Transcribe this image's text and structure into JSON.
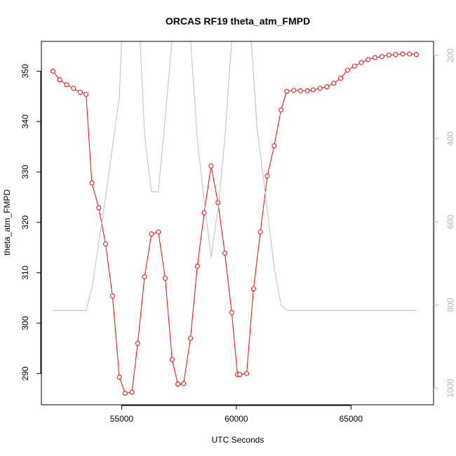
{
  "chart_data": {
    "type": "line",
    "title": "ORCAS RF19 theta_atm_FMPD",
    "xlabel": "UTC Seconds",
    "ylabel": "theta_atm_FMPD",
    "xlim": [
      51500,
      68600
    ],
    "ylim": [
      283.8,
      355.9
    ],
    "y2lim": [
      1040,
      166
    ],
    "x_ticks": [
      55000,
      60000,
      65000
    ],
    "y_ticks": [
      290,
      300,
      310,
      320,
      330,
      340,
      350
    ],
    "y2_ticks": [
      200,
      400,
      600,
      800,
      1000
    ],
    "grid": false,
    "series": [
      {
        "color": "#ff0000",
        "axis": "left",
        "style": "line+points",
        "points": [
          [
            52000,
            350.0
          ],
          [
            52300,
            348.3
          ],
          [
            52600,
            347.3
          ],
          [
            52900,
            346.6
          ],
          [
            53200,
            345.8
          ],
          [
            53450,
            345.4
          ],
          [
            53700,
            327.8
          ],
          [
            54000,
            322.9
          ],
          [
            54300,
            315.7
          ],
          [
            54600,
            305.4
          ],
          [
            54900,
            289.3
          ],
          [
            55150,
            286.1
          ],
          [
            55450,
            286.3
          ],
          [
            55700,
            296.0
          ],
          [
            56000,
            309.2
          ],
          [
            56300,
            317.7
          ],
          [
            56600,
            318.1
          ],
          [
            56900,
            308.9
          ],
          [
            57200,
            292.8
          ],
          [
            57450,
            287.9
          ],
          [
            57700,
            288.0
          ],
          [
            58000,
            297.0
          ],
          [
            58300,
            311.3
          ],
          [
            58600,
            321.9
          ],
          [
            58900,
            331.2
          ],
          [
            59200,
            323.9
          ],
          [
            59500,
            313.9
          ],
          [
            59800,
            302.1
          ],
          [
            60050,
            289.8
          ],
          [
            60150,
            289.8
          ],
          [
            60450,
            290.0
          ],
          [
            60750,
            306.8
          ],
          [
            61050,
            318.1
          ],
          [
            61350,
            329.2
          ],
          [
            61650,
            335.2
          ],
          [
            61950,
            342.3
          ],
          [
            62200,
            346.0
          ],
          [
            62500,
            346.2
          ],
          [
            62800,
            346.1
          ],
          [
            63100,
            346.1
          ],
          [
            63350,
            346.3
          ],
          [
            63650,
            346.6
          ],
          [
            63950,
            346.9
          ],
          [
            64250,
            347.6
          ],
          [
            64550,
            348.6
          ],
          [
            64850,
            350.2
          ],
          [
            65150,
            351.0
          ],
          [
            65450,
            351.7
          ],
          [
            65750,
            352.3
          ],
          [
            66050,
            352.7
          ],
          [
            66350,
            352.9
          ],
          [
            66650,
            353.2
          ],
          [
            66950,
            353.3
          ],
          [
            67250,
            353.4
          ],
          [
            67550,
            353.4
          ],
          [
            67850,
            353.3
          ]
        ]
      },
      {
        "color": "#bebebe",
        "axis": "right",
        "style": "line",
        "points": [
          [
            52000,
            813
          ],
          [
            53450,
            813
          ],
          [
            53700,
            760
          ],
          [
            54300,
            540
          ],
          [
            54900,
            300
          ],
          [
            55000,
            160
          ],
          [
            55800,
            160
          ],
          [
            56000,
            390
          ],
          [
            56300,
            528
          ],
          [
            56600,
            528
          ],
          [
            56900,
            350
          ],
          [
            57200,
            160
          ],
          [
            58000,
            160
          ],
          [
            58300,
            400
          ],
          [
            58600,
            550
          ],
          [
            58900,
            685
          ],
          [
            59200,
            570
          ],
          [
            59500,
            400
          ],
          [
            59800,
            160
          ],
          [
            60650,
            160
          ],
          [
            60900,
            370
          ],
          [
            61350,
            570
          ],
          [
            61650,
            710
          ],
          [
            61950,
            800
          ],
          [
            62200,
            813
          ],
          [
            67850,
            813
          ]
        ]
      }
    ]
  }
}
